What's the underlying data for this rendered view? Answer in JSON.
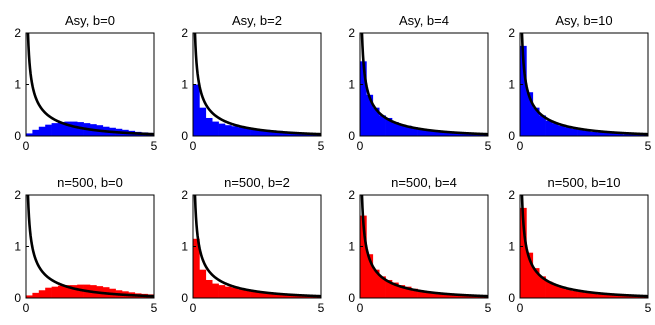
{
  "chart_data": {
    "type": "bar",
    "rows": 2,
    "cols": 4,
    "xlim": [
      0,
      5
    ],
    "ylim": [
      0,
      2
    ],
    "xticks": [
      0,
      5
    ],
    "yticks": [
      0,
      1,
      2
    ],
    "bin_width": 0.25,
    "bin_starts": [
      0,
      0.25,
      0.5,
      0.75,
      1,
      1.25,
      1.5,
      1.75,
      2,
      2.25,
      2.5,
      2.75,
      3,
      3.25,
      3.5,
      3.75,
      4,
      4.25,
      4.5,
      4.75
    ],
    "curve_color": "#000000",
    "panels": [
      {
        "title": "Asy, b=0",
        "color": "#0000ff",
        "values": [
          0.05,
          0.12,
          0.18,
          0.22,
          0.25,
          0.27,
          0.28,
          0.28,
          0.27,
          0.25,
          0.23,
          0.21,
          0.18,
          0.16,
          0.14,
          0.12,
          0.1,
          0.08,
          0.07,
          0.06
        ]
      },
      {
        "title": "Asy, b=2",
        "color": "#0000ff",
        "values": [
          1.0,
          0.55,
          0.35,
          0.28,
          0.24,
          0.21,
          0.19,
          0.17,
          0.15,
          0.14,
          0.13,
          0.12,
          0.11,
          0.1,
          0.08,
          0.07,
          0.05,
          0.04,
          0.03,
          0.02
        ]
      },
      {
        "title": "Asy, b=4",
        "color": "#0000ff",
        "values": [
          1.45,
          0.8,
          0.55,
          0.4,
          0.35,
          0.27,
          0.22,
          0.2,
          0.17,
          0.14,
          0.12,
          0.1,
          0.09,
          0.08,
          0.06,
          0.05,
          0.04,
          0.03,
          0.02,
          0.02
        ]
      },
      {
        "title": "Asy, b=10",
        "color": "#0000ff",
        "values": [
          1.75,
          0.85,
          0.55,
          0.4,
          0.3,
          0.25,
          0.2,
          0.17,
          0.14,
          0.12,
          0.1,
          0.08,
          0.07,
          0.06,
          0.05,
          0.04,
          0.03,
          0.03,
          0.02,
          0.02
        ]
      },
      {
        "title": "n=500, b=0",
        "color": "#ff0000",
        "values": [
          0.05,
          0.1,
          0.15,
          0.2,
          0.22,
          0.24,
          0.25,
          0.25,
          0.26,
          0.26,
          0.25,
          0.23,
          0.21,
          0.18,
          0.15,
          0.13,
          0.11,
          0.09,
          0.08,
          0.07
        ]
      },
      {
        "title": "n=500, b=2",
        "color": "#ff0000",
        "values": [
          1.15,
          0.55,
          0.35,
          0.28,
          0.25,
          0.22,
          0.2,
          0.17,
          0.15,
          0.13,
          0.12,
          0.1,
          0.09,
          0.08,
          0.07,
          0.06,
          0.05,
          0.04,
          0.03,
          0.02
        ]
      },
      {
        "title": "n=500, b=4",
        "color": "#ff0000",
        "values": [
          1.6,
          0.85,
          0.55,
          0.42,
          0.35,
          0.3,
          0.25,
          0.22,
          0.18,
          0.15,
          0.13,
          0.11,
          0.1,
          0.08,
          0.07,
          0.06,
          0.05,
          0.04,
          0.03,
          0.02
        ]
      },
      {
        "title": "n=500, b=10",
        "color": "#ff0000",
        "values": [
          1.75,
          0.88,
          0.58,
          0.42,
          0.32,
          0.26,
          0.21,
          0.17,
          0.14,
          0.12,
          0.1,
          0.09,
          0.07,
          0.06,
          0.05,
          0.04,
          0.04,
          0.03,
          0.02,
          0.02
        ]
      }
    ]
  }
}
